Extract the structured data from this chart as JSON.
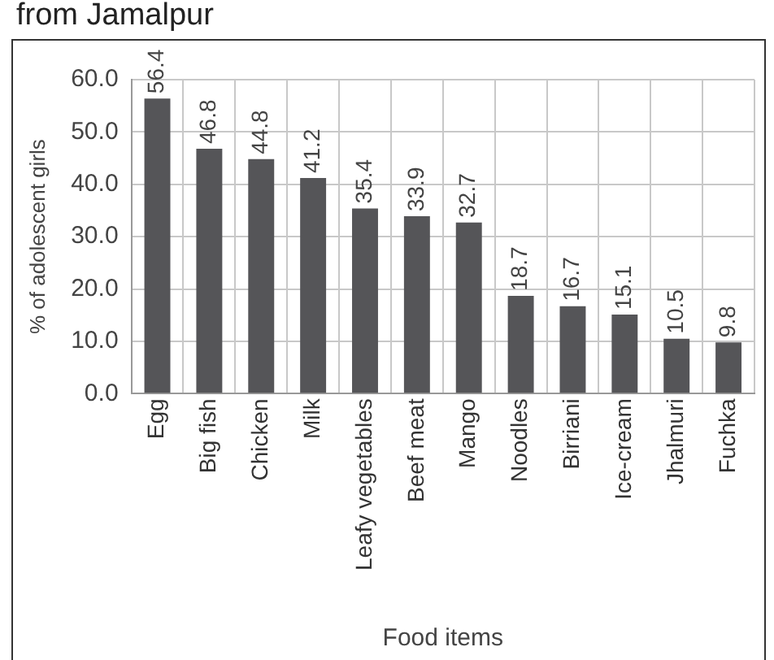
{
  "chart_data": {
    "type": "bar",
    "title": "from Jamalpur",
    "xlabel": "Food items",
    "ylabel": "% of adolescent girls",
    "categories": [
      "Egg",
      "Big fish",
      "Chicken",
      "Milk",
      "Leafy vegetables",
      "Beef meat",
      "Mango",
      "Noodles",
      "Birriani",
      "Ice-cream",
      "Jhalmuri",
      "Fuchka"
    ],
    "values": [
      56.4,
      46.8,
      44.8,
      41.2,
      35.4,
      33.9,
      32.7,
      18.7,
      16.7,
      15.1,
      10.5,
      9.8
    ],
    "color": "#555558",
    "ylim": [
      0,
      60
    ],
    "yticks": [
      {
        "value": 0,
        "label": "0.0"
      },
      {
        "value": 10,
        "label": "10.0"
      },
      {
        "value": 20,
        "label": "20.0"
      },
      {
        "value": 30,
        "label": "30.0"
      },
      {
        "value": 40,
        "label": "40.0"
      },
      {
        "value": 50,
        "label": "50.0"
      },
      {
        "value": 60,
        "label": "60.0"
      }
    ],
    "grid": true,
    "data_labels": true,
    "legend": false
  }
}
